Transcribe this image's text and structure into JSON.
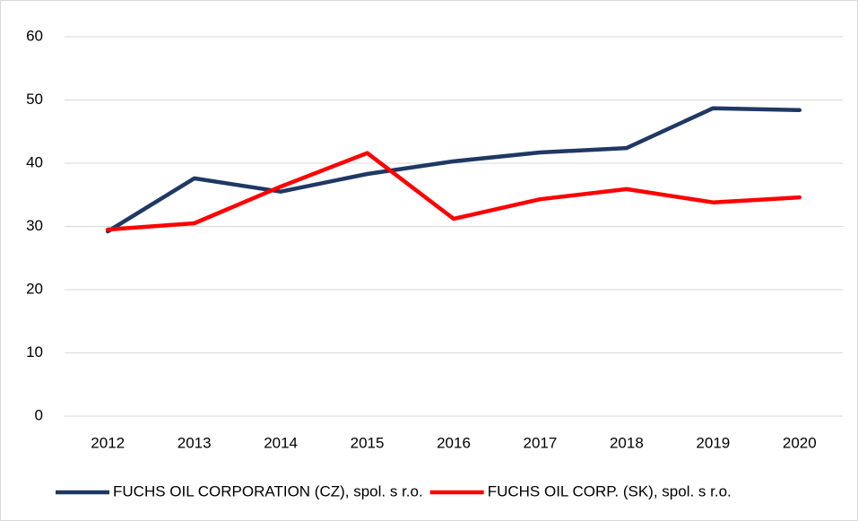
{
  "chart_data": {
    "type": "line",
    "categories": [
      "2012",
      "2013",
      "2014",
      "2015",
      "2016",
      "2017",
      "2018",
      "2019",
      "2020"
    ],
    "series": [
      {
        "name": "FUCHS OIL CORPORATION (CZ), spol. s r.o.",
        "color": "#1f3864",
        "values": [
          29.2,
          37.6,
          35.5,
          38.3,
          40.3,
          41.7,
          42.4,
          48.7,
          48.4
        ]
      },
      {
        "name": "FUCHS OIL CORP. (SK), spol. s r.o.",
        "color": "#ff0000",
        "values": [
          29.5,
          30.5,
          36.3,
          41.6,
          31.2,
          34.3,
          35.9,
          33.8,
          34.6
        ]
      }
    ],
    "ylim": [
      0,
      60
    ],
    "yticks": [
      0,
      10,
      20,
      30,
      40,
      50,
      60
    ],
    "grid": true,
    "legend": "bottom"
  }
}
